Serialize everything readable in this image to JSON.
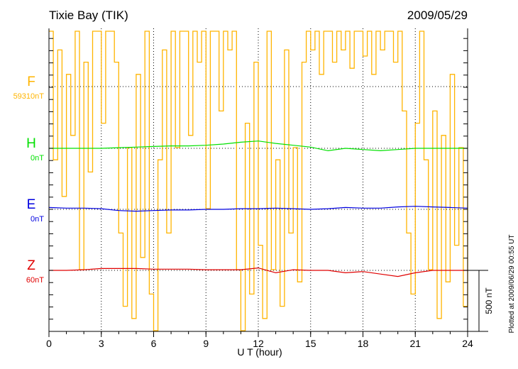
{
  "chart_data": {
    "type": "line",
    "title": "Tixie Bay (TIK)",
    "date": "2009/05/29",
    "xlabel": "U T (hour)",
    "xlim": [
      0,
      24
    ],
    "xticks": [
      "0",
      "3",
      "6",
      "9",
      "12",
      "15",
      "18",
      "21",
      "24"
    ],
    "scale_bar_label": "500 nT",
    "scale_bar_nT": 500,
    "footer": "Plotted at 2009/06/29 00:55 UT",
    "grid": "dotted",
    "series": [
      {
        "name": "F",
        "baseline_label": "59310nT",
        "color": "#ffb400",
        "step_hours": 0.25,
        "values": [
          470,
          -600,
          300,
          -900,
          100,
          -400,
          470,
          -1500,
          200,
          -700,
          470,
          470,
          -300,
          470,
          470,
          200,
          -1200,
          -1800,
          -500,
          -1900,
          100,
          -1400,
          470,
          -1700,
          -2000,
          -600,
          300,
          -1200,
          470,
          -500,
          470,
          470,
          -400,
          470,
          200,
          470,
          -1000,
          470,
          470,
          -200,
          470,
          300,
          470,
          -1500,
          -2000,
          -300,
          -1700,
          200,
          -1300,
          -1900,
          470,
          -1500,
          -600,
          -1800,
          300,
          -1200,
          -500,
          -1600,
          200,
          470,
          300,
          470,
          100,
          470,
          470,
          200,
          470,
          300,
          470,
          150,
          470,
          470,
          250,
          470,
          100,
          470,
          300,
          470,
          470,
          200,
          470,
          -200,
          -1200,
          -1700,
          -300,
          470,
          -600,
          -1500,
          -200,
          -1900,
          -400,
          -1600,
          100,
          -1300,
          -500,
          -1800,
          -700
        ]
      },
      {
        "name": "H",
        "baseline_label": "0nT",
        "color": "#00e000",
        "step_hours": 1,
        "values": [
          0,
          0,
          0,
          0,
          5,
          10,
          15,
          20,
          20,
          25,
          35,
          50,
          60,
          40,
          25,
          10,
          -20,
          0,
          -10,
          -20,
          -10,
          0,
          0,
          0,
          0
        ]
      },
      {
        "name": "E",
        "baseline_label": "0nT",
        "color": "#0000e0",
        "step_hours": 1,
        "values": [
          15,
          10,
          10,
          5,
          -10,
          -15,
          -10,
          -5,
          -5,
          0,
          0,
          5,
          5,
          10,
          5,
          0,
          5,
          15,
          10,
          10,
          20,
          25,
          20,
          15,
          10
        ]
      },
      {
        "name": "Z",
        "baseline_label": "60nT",
        "color": "#e00000",
        "step_hours": 1,
        "values": [
          0,
          0,
          5,
          15,
          15,
          15,
          10,
          10,
          10,
          5,
          5,
          5,
          20,
          -20,
          5,
          0,
          0,
          -20,
          -10,
          -30,
          -50,
          -20,
          0,
          0,
          0
        ]
      }
    ]
  }
}
